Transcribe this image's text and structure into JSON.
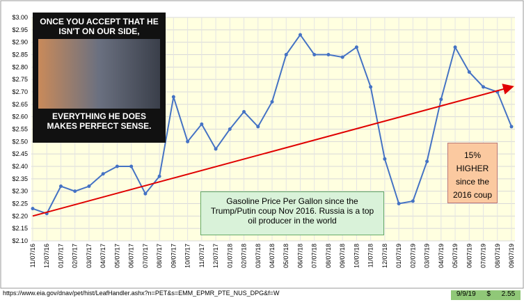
{
  "chart_data": {
    "type": "line",
    "categories": [
      "11/07/16",
      "12/07/16",
      "01/07/17",
      "02/07/17",
      "03/07/17",
      "04/07/17",
      "05/07/17",
      "06/07/17",
      "07/07/17",
      "08/07/17",
      "09/07/17",
      "10/07/17",
      "11/07/17",
      "12/07/17",
      "01/07/18",
      "02/07/18",
      "03/07/18",
      "04/07/18",
      "05/07/18",
      "06/07/18",
      "07/07/18",
      "08/07/18",
      "09/07/18",
      "10/07/18",
      "11/07/18",
      "12/07/18",
      "01/07/19",
      "02/07/19",
      "03/07/19",
      "04/07/19",
      "05/07/19",
      "06/07/19",
      "07/07/19",
      "08/07/19",
      "09/07/19"
    ],
    "series": [
      {
        "color": "#4472c4",
        "values": [
          2.23,
          2.21,
          2.32,
          2.3,
          2.32,
          2.37,
          2.4,
          2.4,
          2.29,
          2.36,
          2.68,
          2.5,
          2.57,
          2.47,
          2.55,
          2.62,
          2.56,
          2.66,
          2.85,
          2.93,
          2.85,
          2.85,
          2.84,
          2.88,
          2.72,
          2.43,
          2.25,
          2.26,
          2.42,
          2.67,
          2.88,
          2.78,
          2.72,
          2.7,
          2.56
        ]
      }
    ],
    "trend": {
      "start": 2.2,
      "end": 2.72,
      "color": "#e00000"
    },
    "ylim": [
      2.1,
      3.0
    ],
    "yticks": [
      {
        "value": 2.1,
        "label": "$2.10"
      },
      {
        "value": 2.15,
        "label": "$2.15"
      },
      {
        "value": 2.2,
        "label": "$2.20"
      },
      {
        "value": 2.25,
        "label": "$2.25"
      },
      {
        "value": 2.3,
        "label": "$2.30"
      },
      {
        "value": 2.35,
        "label": "$2.35"
      },
      {
        "value": 2.4,
        "label": "$2.40"
      },
      {
        "value": 2.45,
        "label": "$2.45"
      },
      {
        "value": 2.5,
        "label": "$2.50"
      },
      {
        "value": 2.55,
        "label": "$2.55"
      },
      {
        "value": 2.6,
        "label": "$2.60"
      },
      {
        "value": 2.65,
        "label": "$2.65"
      },
      {
        "value": 2.7,
        "label": "$2.70"
      },
      {
        "value": 2.75,
        "label": "$2.75"
      },
      {
        "value": 2.8,
        "label": "$2.80"
      },
      {
        "value": 2.85,
        "label": "$2.85"
      },
      {
        "value": 2.9,
        "label": "$2.90"
      },
      {
        "value": 2.95,
        "label": "$2.95"
      },
      {
        "value": 3.0,
        "label": "$3.00"
      }
    ],
    "grid": true,
    "annotations": {
      "meme_top": "ONCE YOU ACCEPT THAT HE ISN'T ON OUR SIDE,",
      "meme_bottom": "EVERYTHING HE DOES MAKES PERFECT SENSE.",
      "note": "Gasoline Price Per Gallon since the Trump/Putin coup Nov 2016.  Russia is a top oil producer in the world",
      "callout": "15% HIGHER since the 2016 coup"
    },
    "footer": {
      "url": "https://www.eia.gov/dnav/pet/hist/LeafHandler.ashx?n=PET&s=EMM_EPMR_PTE_NUS_DPG&f=W",
      "date": "9/9/19",
      "currency": "$",
      "price": "2.55"
    }
  }
}
